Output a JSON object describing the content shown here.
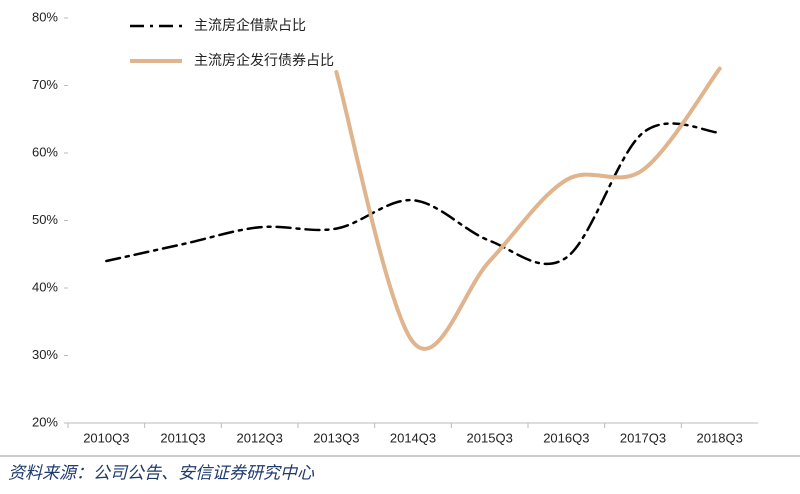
{
  "chart_data": {
    "type": "line",
    "categories": [
      "2010Q3",
      "2011Q3",
      "2012Q3",
      "2013Q3",
      "2014Q3",
      "2015Q3",
      "2016Q3",
      "2017Q3",
      "2018Q3"
    ],
    "series": [
      {
        "name": "主流房企借款占比",
        "color": "#000000",
        "dash": "dashdot",
        "values": [
          44,
          46.5,
          49,
          48.8,
          53,
          47,
          44.5,
          63,
          63
        ]
      },
      {
        "name": "主流房企发行债券占比",
        "color": "#e0b48c",
        "dash": "solid",
        "values": [
          null,
          null,
          null,
          72,
          32,
          44,
          56,
          57.5,
          72.5
        ]
      }
    ],
    "ylim": [
      20,
      80
    ],
    "yticks": [
      {
        "value": 20,
        "label": "20%"
      },
      {
        "value": 30,
        "label": "30%"
      },
      {
        "value": 40,
        "label": "40%"
      },
      {
        "value": 50,
        "label": "50%"
      },
      {
        "value": 60,
        "label": "60%"
      },
      {
        "value": 70,
        "label": "70%"
      },
      {
        "value": 80,
        "label": "80%"
      }
    ],
    "smooth": true,
    "source": "资料来源：公司公告、安信证券研究中心"
  }
}
